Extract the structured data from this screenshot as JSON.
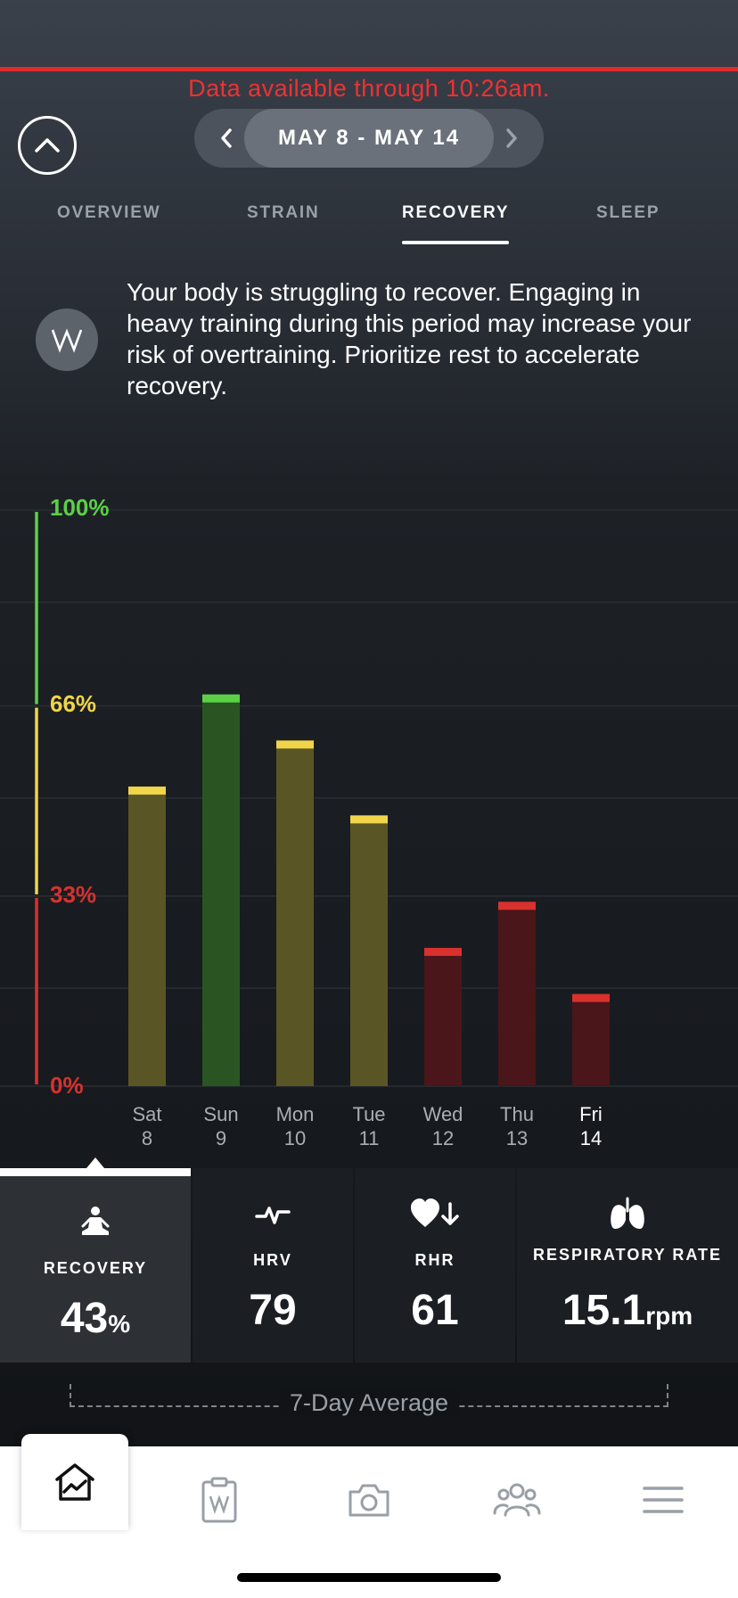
{
  "banner": {
    "text": "Data available through 10:26am."
  },
  "date_range": {
    "label": "MAY 8 - MAY 14"
  },
  "tabs": [
    {
      "label": "OVERVIEW",
      "active": false
    },
    {
      "label": "STRAIN",
      "active": false
    },
    {
      "label": "RECOVERY",
      "active": true
    },
    {
      "label": "SLEEP",
      "active": false
    }
  ],
  "insight": {
    "text": "Your body is struggling to recover. Engaging in heavy training during this period may increase your risk of overtraining. Prioritize rest to accelerate recovery."
  },
  "chart_data": {
    "type": "bar",
    "categories": [
      "Sat 8",
      "Sun 9",
      "Mon 10",
      "Tue 11",
      "Wed 12",
      "Thu 13",
      "Fri 14"
    ],
    "day_names": [
      "Sat",
      "Sun",
      "Mon",
      "Tue",
      "Wed",
      "Thu",
      "Fri"
    ],
    "day_numbers": [
      "8",
      "9",
      "10",
      "11",
      "12",
      "13",
      "14"
    ],
    "values": [
      52,
      68,
      60,
      47,
      24,
      32,
      16
    ],
    "ylim": [
      0,
      100
    ],
    "y_ticks": [
      "100%",
      "66%",
      "33%",
      "0%"
    ],
    "zones": [
      {
        "min": 0,
        "max": 33,
        "color": "#d8312e"
      },
      {
        "min": 33,
        "max": 66,
        "color": "#f0d54a"
      },
      {
        "min": 66,
        "max": 100,
        "color": "#5bd046"
      }
    ],
    "grid": true
  },
  "stats": [
    {
      "label": "RECOVERY",
      "value": "43",
      "unit": "%",
      "icon": "meditation-icon",
      "selected": true
    },
    {
      "label": "HRV",
      "value": "79",
      "unit": "",
      "icon": "pulse-icon",
      "selected": false
    },
    {
      "label": "RHR",
      "value": "61",
      "unit": "",
      "icon": "heart-down-icon",
      "selected": false
    },
    {
      "label": "RESPIRATORY RATE",
      "value": "15.1",
      "unit": "rpm",
      "icon": "lungs-icon",
      "selected": false
    }
  ],
  "average": {
    "label": "7-Day Average"
  },
  "nav": [
    {
      "name": "home-icon",
      "active": true
    },
    {
      "name": "journal-icon",
      "active": false
    },
    {
      "name": "camera-icon",
      "active": false
    },
    {
      "name": "community-icon",
      "active": false
    },
    {
      "name": "menu-icon",
      "active": false
    }
  ],
  "colors": {
    "accent_red": "#e02b2b",
    "green": "#5bd046",
    "yellow": "#f0d54a",
    "red": "#d8312e"
  }
}
